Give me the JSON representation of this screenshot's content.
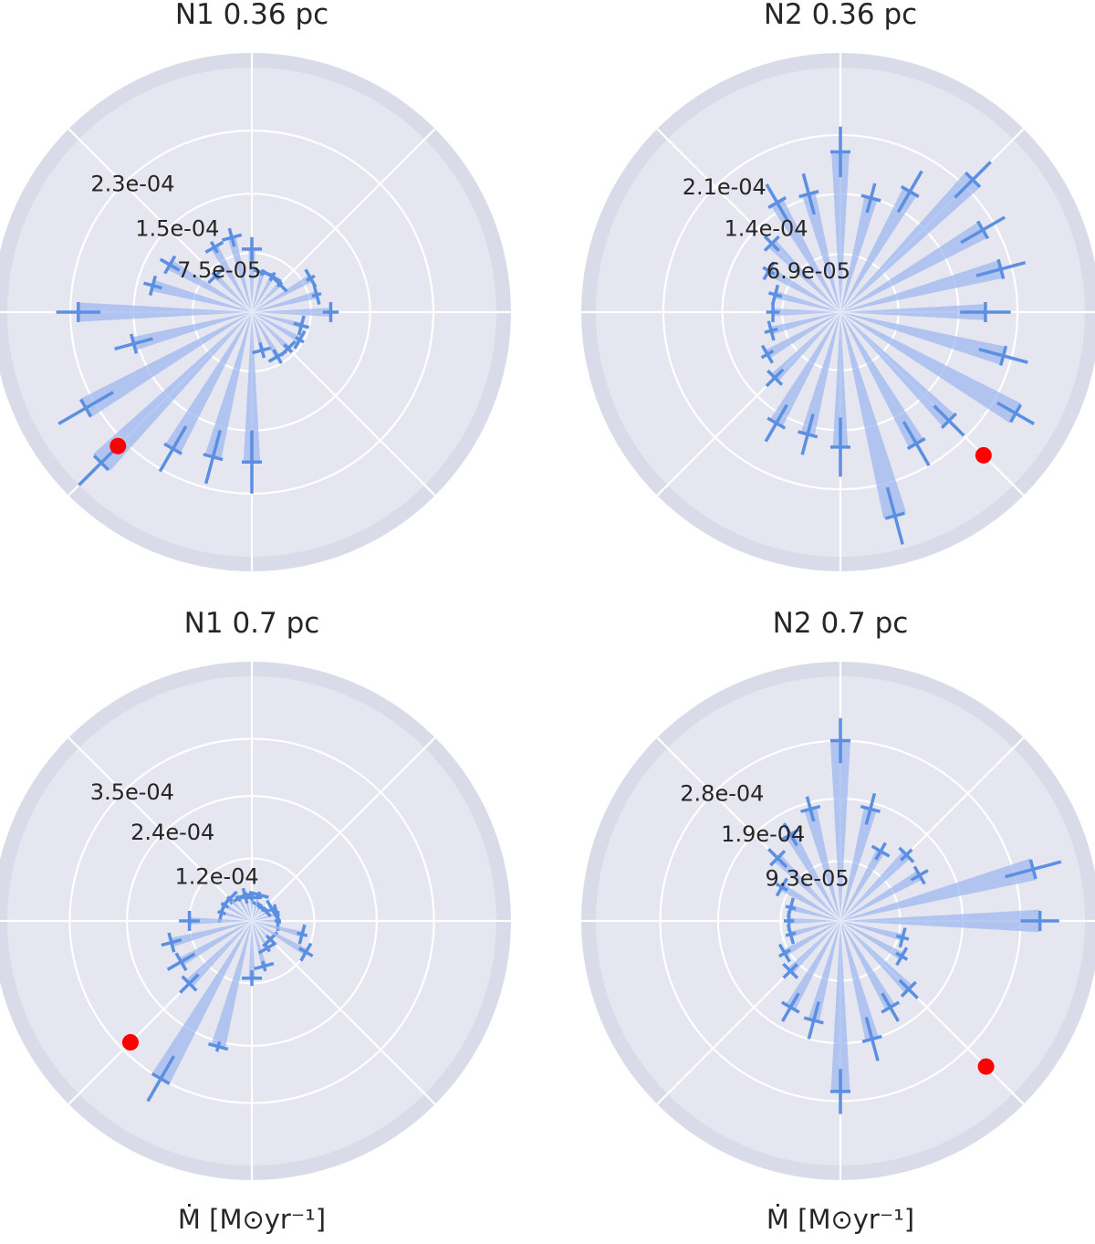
{
  "figure": {
    "xlabel": "Ṁ [M⊙yr⁻¹]"
  },
  "colors": {
    "panel_bg": "#e5e6f0",
    "outer_ring": "#d9dbe9",
    "grid": "#ffffff",
    "bar_fill": "#9fb8f0",
    "bar_line": "#5b8fe2",
    "marker": "#ff0000"
  },
  "chart_data": [
    {
      "type": "polar-bar",
      "title": "N1 0.36 pc",
      "rticks": [
        7.5e-05,
        0.00015,
        0.00023
      ],
      "rtick_labels": [
        "7.5e-05",
        "1.5e-04",
        "2.3e-04"
      ],
      "rmax": 0.00031,
      "theta_deg": [
        0,
        15,
        30,
        45,
        60,
        75,
        90,
        105,
        120,
        135,
        150,
        165,
        180,
        195,
        210,
        225,
        240,
        255,
        270,
        285,
        300,
        315,
        330,
        345
      ],
      "values": [
        0.0001,
        8.5e-05,
        8.6e-05,
        5e-05,
        5.2e-05,
        5.2e-05,
        8e-05,
        9.8e-05,
        9.5e-05,
        6.5e-05,
        0.00012,
        0.00013,
        0.00022,
        0.000155,
        0.000243,
        0.00027,
        0.0002,
        0.00019,
        0.00019,
        5e-05,
        6.5e-05,
        6.5e-05,
        7e-05,
        6.5e-05
      ],
      "errors": [
        1e-05,
        6e-06,
        6e-06,
        4e-06,
        6e-06,
        4e-06,
        1.5e-05,
        1.2e-05,
        8e-06,
        6e-06,
        1.4e-05,
        1.2e-05,
        2.8e-05,
        2.5e-05,
        4e-05,
        4e-05,
        3.3e-05,
        3.5e-05,
        4e-05,
        1e-05,
        1e-05,
        7e-06,
        6e-06,
        1e-05
      ],
      "marker": {
        "theta_deg": 225,
        "value": 0.00024
      }
    },
    {
      "type": "polar-bar",
      "title": "N2 0.36 pc",
      "rticks": [
        6.9e-05,
        0.00014,
        0.00021
      ],
      "rtick_labels": [
        "6.9e-05",
        "1.4e-04",
        "2.1e-04"
      ],
      "rmax": 0.00029,
      "theta_deg": [
        0,
        15,
        30,
        45,
        60,
        75,
        90,
        105,
        120,
        135,
        150,
        165,
        180,
        195,
        210,
        225,
        240,
        255,
        270,
        285,
        300,
        315,
        330,
        345
      ],
      "values": [
        0.000172,
        0.000197,
        0.000195,
        0.000222,
        0.000165,
        0.00014,
        0.00019,
        0.000145,
        0.00015,
        0.000115,
        9.8e-05,
        8e-05,
        8e-05,
        8.5e-05,
        0.0001,
        0.00011,
        0.000152,
        0.00015,
        0.00016,
        0.00025,
        0.00018,
        0.000182,
        0.00024,
        0.0002
      ],
      "errors": [
        3e-05,
        3e-05,
        3e-05,
        3e-05,
        2.8e-05,
        1.8e-05,
        3e-05,
        2.5e-05,
        2.5e-05,
        1.2e-05,
        8e-06,
        8e-06,
        8e-06,
        8e-06,
        8e-06,
        1.4e-05,
        2.5e-05,
        2.5e-05,
        3.5e-05,
        3.5e-05,
        3e-05,
        2.5e-05,
        2.5e-05,
        3e-05
      ],
      "marker": {
        "theta_deg": 315,
        "value": 0.00024
      }
    },
    {
      "type": "polar-bar",
      "title": "N1 0.7 pc",
      "rticks": [
        0.00012,
        0.00024,
        0.00035
      ],
      "rtick_labels": [
        "1.2e-04",
        "2.4e-04",
        "3.5e-04"
      ],
      "rmax": 0.00047,
      "theta_deg": [
        0,
        15,
        30,
        45,
        60,
        75,
        90,
        105,
        120,
        135,
        150,
        165,
        180,
        195,
        210,
        225,
        240,
        255,
        270,
        285,
        300,
        315,
        330,
        345
      ],
      "values": [
        5e-05,
        5e-05,
        4.5e-05,
        3.2e-05,
        3.2e-05,
        5.2e-05,
        4.5e-05,
        5e-05,
        5e-05,
        6e-05,
        6e-05,
        6e-05,
        0.00012,
        0.00016,
        0.000157,
        0.00017,
        0.00035,
        0.00025,
        0.00011,
        9e-05,
        6e-05,
        5e-05,
        0.00012,
        0.0001
      ],
      "errors": [
        6e-06,
        5e-06,
        6e-06,
        5e-06,
        5e-06,
        6e-06,
        6e-06,
        1.5e-05,
        6e-06,
        6e-06,
        8e-06,
        8e-06,
        2e-05,
        2e-05,
        3e-05,
        2.5e-05,
        5e-05,
        1e-05,
        1.5e-05,
        1e-05,
        8e-06,
        1e-05,
        1.5e-05,
        1e-05
      ],
      "marker": {
        "theta_deg": 225,
        "value": 0.00033
      }
    },
    {
      "type": "polar-bar",
      "title": "N2 0.7 pc",
      "rticks": [
        9.3e-05,
        0.00019,
        0.00028
      ],
      "rtick_labels": [
        "9.3e-05",
        "1.9e-04",
        "2.8e-04"
      ],
      "rmax": 0.00038,
      "theta_deg": [
        0,
        15,
        30,
        45,
        60,
        75,
        90,
        105,
        120,
        135,
        150,
        165,
        180,
        195,
        210,
        225,
        240,
        255,
        270,
        285,
        300,
        315,
        330,
        345
      ],
      "values": [
        0.00031,
        0.00031,
        0.000142,
        0.000145,
        0.000125,
        0.00018,
        0.00028,
        0.00018,
        0.000155,
        0.000138,
        0.000105,
        8e-05,
        8e-05,
        8e-05,
        0.0001,
        0.00011,
        0.000155,
        0.00016,
        0.000265,
        0.00019,
        0.000155,
        0.00015,
        0.00011,
        0.0001
      ],
      "errors": [
        3e-05,
        4.5e-05,
        1.5e-05,
        1.2e-05,
        1.5e-05,
        2.5e-05,
        3.5e-05,
        2e-05,
        2e-05,
        2e-05,
        1e-05,
        8e-06,
        8e-06,
        8e-06,
        1e-05,
        1.5e-05,
        2.5e-05,
        3e-05,
        3.5e-05,
        3.5e-05,
        2.5e-05,
        2e-05,
        1e-05,
        1e-05
      ],
      "marker": {
        "theta_deg": 315,
        "value": 0.00032
      }
    }
  ]
}
